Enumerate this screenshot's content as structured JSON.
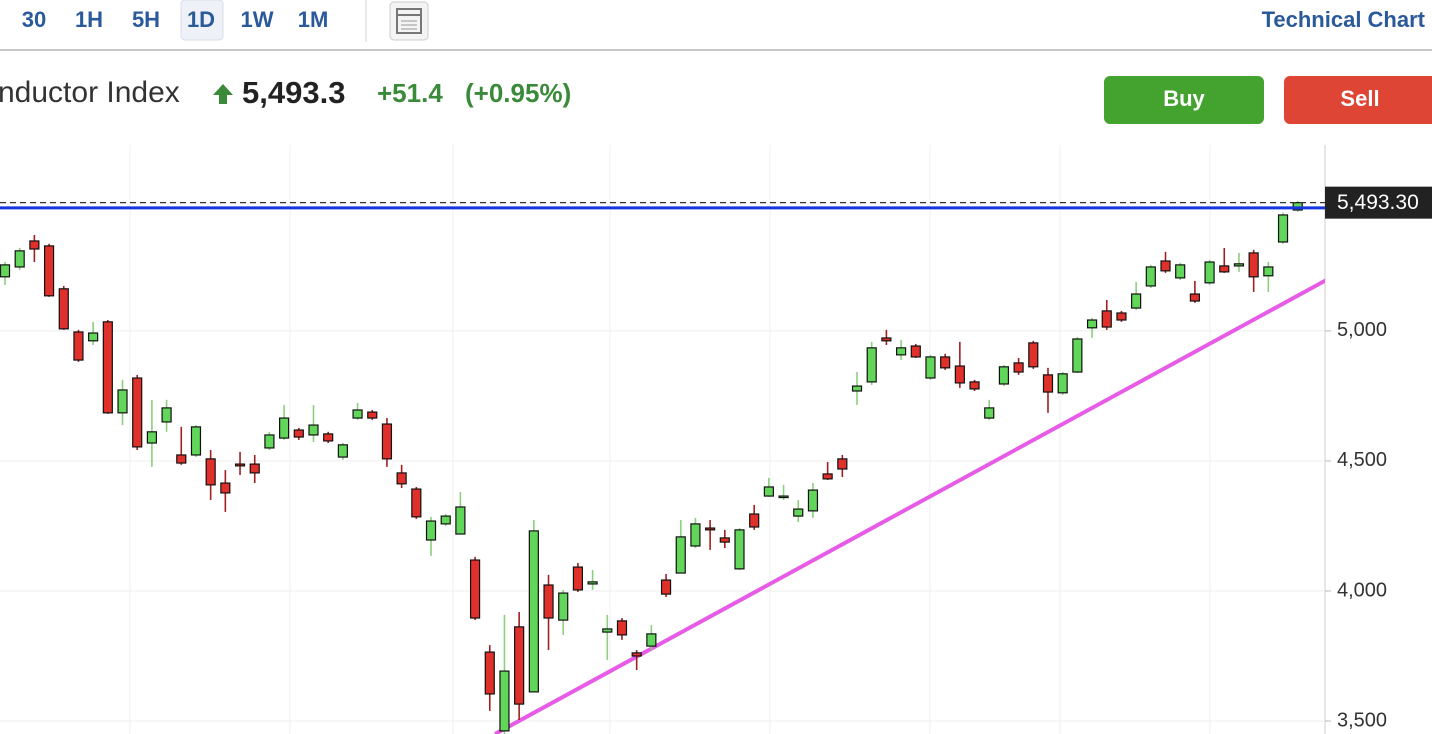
{
  "toolbar": {
    "tabs": [
      "30",
      "1H",
      "5H",
      "1D",
      "1W",
      "1M"
    ],
    "selected": 3,
    "link": "Technical Chart"
  },
  "header": {
    "name": "nductor Index",
    "price": "5,493.3",
    "change": "+51.4",
    "change_pct": "(+0.95%)"
  },
  "buttons": {
    "buy": "Buy",
    "sell": "Sell"
  },
  "chart_data": {
    "type": "candlestick",
    "open": [
      5208,
      5246,
      5346,
      5327,
      5162,
      4996,
      4962,
      5035,
      4685,
      4819,
      4569,
      4650,
      4523,
      4523,
      4508,
      4415,
      4488,
      4488,
      4550,
      4588,
      4619,
      4600,
      4604,
      4515,
      4665,
      4688,
      4642,
      4454,
      4392,
      4196,
      4258,
      4219,
      4119,
      3765,
      3462,
      3862,
      3612,
      4023,
      3888,
      4092,
      4027,
      3842,
      3885,
      3762,
      3788,
      4042,
      4069,
      4173,
      4242,
      4204,
      4085,
      4296,
      4365,
      4362,
      4288,
      4308,
      4450,
      4508,
      4769,
      4804,
      4973,
      4908,
      4942,
      4819,
      4900,
      4865,
      4804,
      4665,
      4796,
      4877,
      4954,
      4831,
      4762,
      4842,
      5012,
      5077,
      5069,
      5088,
      5173,
      5269,
      5204,
      5142,
      5185,
      5250,
      5250,
      5300,
      5212,
      5342,
      5465
    ],
    "high": [
      5265,
      5319,
      5369,
      5335,
      5173,
      5004,
      5035,
      5042,
      4812,
      4831,
      4735,
      4735,
      4631,
      4638,
      4542,
      4465,
      4535,
      4523,
      4612,
      4715,
      4627,
      4715,
      4612,
      4569,
      4723,
      4696,
      4665,
      4485,
      4400,
      4285,
      4296,
      4381,
      4131,
      3792,
      3908,
      3919,
      4273,
      4062,
      4004,
      4108,
      4081,
      3908,
      3896,
      3773,
      3869,
      4065,
      4273,
      4281,
      4273,
      4235,
      4242,
      4331,
      4435,
      4408,
      4350,
      4415,
      4496,
      4523,
      4842,
      4958,
      5004,
      4965,
      4950,
      4908,
      4912,
      4958,
      4812,
      4735,
      4869,
      4896,
      4962,
      4858,
      4842,
      4977,
      5050,
      5119,
      5077,
      5188,
      5254,
      5304,
      5262,
      5192,
      5273,
      5319,
      5300,
      5312,
      5265,
      5454,
      5500
    ],
    "low": [
      5177,
      5235,
      5265,
      5131,
      5004,
      4881,
      4946,
      4681,
      4638,
      4542,
      4477,
      4612,
      4485,
      4515,
      4350,
      4304,
      4446,
      4415,
      4542,
      4581,
      4581,
      4573,
      4569,
      4504,
      4658,
      4658,
      4477,
      4396,
      4277,
      4135,
      4250,
      4219,
      3888,
      3539,
      3450,
      3504,
      3612,
      3773,
      3831,
      3996,
      4004,
      3735,
      3812,
      3696,
      3773,
      3977,
      4069,
      4165,
      4158,
      4165,
      4081,
      4235,
      4362,
      4350,
      4265,
      4281,
      4427,
      4438,
      4715,
      4792,
      4946,
      4888,
      4896,
      4812,
      4850,
      4781,
      4769,
      4658,
      4788,
      4831,
      4854,
      4685,
      4754,
      4838,
      4973,
      5004,
      5035,
      5081,
      5165,
      5223,
      5196,
      5108,
      5177,
      5223,
      5227,
      5150,
      5150,
      5335,
      5458
    ],
    "close": [
      5254,
      5308,
      5315,
      5135,
      5008,
      4888,
      4992,
      4685,
      4773,
      4554,
      4612,
      4704,
      4492,
      4631,
      4408,
      4377,
      4481,
      4454,
      4600,
      4665,
      4592,
      4638,
      4577,
      4562,
      4696,
      4665,
      4508,
      4412,
      4285,
      4269,
      4288,
      4323,
      3896,
      3604,
      3692,
      3565,
      4231,
      3896,
      3992,
      4004,
      4035,
      3854,
      3831,
      3750,
      3835,
      3988,
      4208,
      4258,
      4235,
      4188,
      4235,
      4246,
      4400,
      4365,
      4315,
      4388,
      4431,
      4469,
      4788,
      4935,
      4962,
      4935,
      4900,
      4900,
      4858,
      4800,
      4777,
      4704,
      4862,
      4842,
      4862,
      4765,
      4835,
      4969,
      5042,
      5015,
      5042,
      5142,
      5246,
      5231,
      5254,
      5115,
      5265,
      5227,
      5258,
      5208,
      5246,
      5446,
      5493.3
    ],
    "up_color": "#62d65a",
    "down_color": "#e0302b",
    "ylim": [
      3450,
      5715
    ],
    "yticks": [
      {
        "value": 3500,
        "label": "3,500"
      },
      {
        "value": 4000,
        "label": "4,000"
      },
      {
        "value": 4500,
        "label": "4,500"
      },
      {
        "value": 5000,
        "label": "5,000"
      }
    ],
    "grid": true,
    "price_line": {
      "value": 5493.3,
      "label": "5,493.30"
    },
    "level_line": {
      "value": 5473,
      "color": "#1436e0"
    },
    "trend_line": {
      "x": [
        33.36,
        93.46
      ],
      "values": [
        3450,
        5304
      ],
      "color": "#e65ce6"
    }
  }
}
